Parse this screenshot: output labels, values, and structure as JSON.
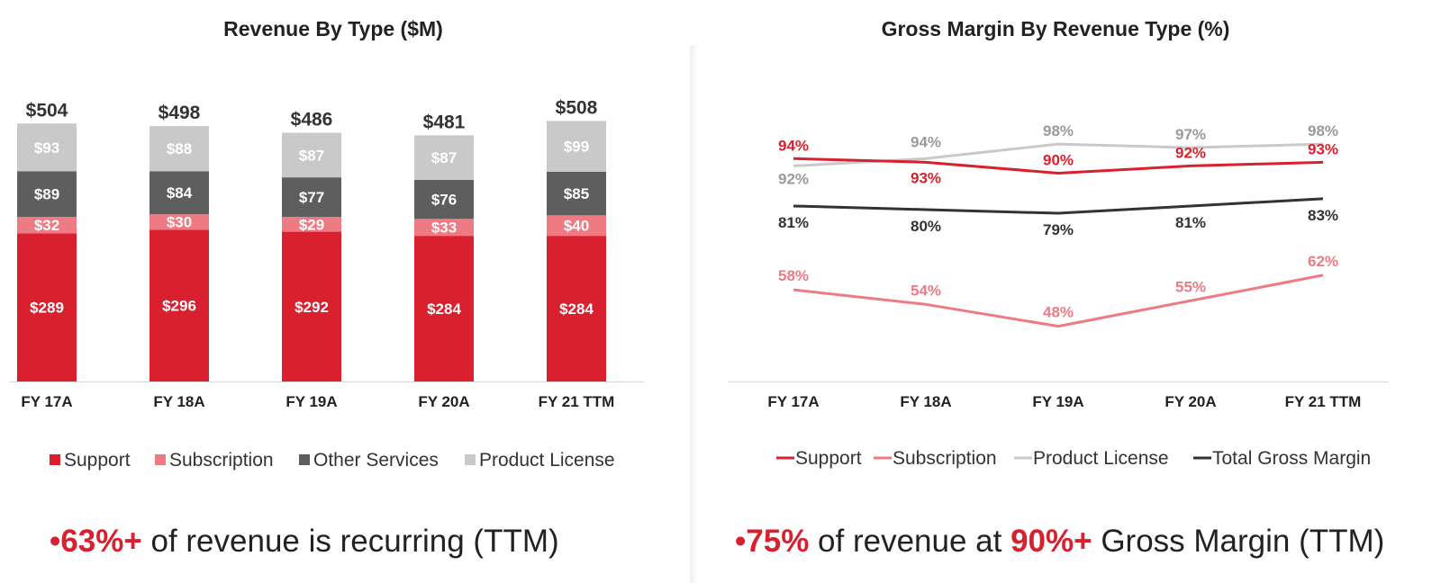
{
  "colors": {
    "support": "#d9202e",
    "subscription": "#ee7a83",
    "other_services": "#5e5e5e",
    "product_license": "#c9c9c9",
    "total_gross_margin": "#333333",
    "highlight": "#d9202e"
  },
  "chart_data": [
    {
      "type": "bar",
      "stacked": true,
      "title": "Revenue By Type ($M)",
      "categories": [
        "FY 17A",
        "FY 18A",
        "FY 19A",
        "FY 20A",
        "FY 21 TTM"
      ],
      "series": [
        {
          "name": "Support",
          "values": [
            289,
            296,
            292,
            284,
            284
          ],
          "labels": [
            "$289",
            "$296",
            "$292",
            "$284",
            "$284"
          ]
        },
        {
          "name": "Subscription",
          "values": [
            32,
            30,
            29,
            33,
            40
          ],
          "labels": [
            "$32",
            "$30",
            "$29",
            "$33",
            "$40"
          ]
        },
        {
          "name": "Other Services",
          "values": [
            89,
            84,
            77,
            76,
            85
          ],
          "labels": [
            "$89",
            "$84",
            "$77",
            "$76",
            "$85"
          ]
        },
        {
          "name": "Product License",
          "values": [
            93,
            88,
            87,
            87,
            99
          ],
          "labels": [
            "$93",
            "$88",
            "$87",
            "$87",
            "$99"
          ]
        }
      ],
      "totals": [
        "$504",
        "$498",
        "$486",
        "$481",
        "$508"
      ],
      "legend_position": "bottom"
    },
    {
      "type": "line",
      "title": "Gross Margin By Revenue Type (%)",
      "categories": [
        "FY 17A",
        "FY 18A",
        "FY 19A",
        "FY 20A",
        "FY 21 TTM"
      ],
      "series": [
        {
          "name": "Support",
          "values": [
            94,
            93,
            90,
            92,
            93
          ],
          "labels": [
            "94%",
            "93%",
            "90%",
            "92%",
            "93%"
          ]
        },
        {
          "name": "Subscription",
          "values": [
            58,
            54,
            48,
            55,
            62
          ],
          "labels": [
            "58%",
            "54%",
            "48%",
            "55%",
            "62%"
          ]
        },
        {
          "name": "Product License",
          "values": [
            92,
            94,
            98,
            97,
            98
          ],
          "labels": [
            "92%",
            "94%",
            "98%",
            "97%",
            "98%"
          ]
        },
        {
          "name": "Total Gross Margin",
          "values": [
            81,
            80,
            79,
            81,
            83
          ],
          "labels": [
            "81%",
            "80%",
            "79%",
            "81%",
            "83%"
          ]
        }
      ],
      "legend_position": "bottom"
    }
  ],
  "footer_left": {
    "bullet": "•",
    "highlight": "63%+",
    "rest": " of revenue is recurring (TTM)"
  },
  "footer_right": {
    "bullet": "•",
    "highlight1": "75%",
    "middle": " of revenue at ",
    "highlight2": "90%+",
    "rest": " Gross Margin (TTM)"
  }
}
